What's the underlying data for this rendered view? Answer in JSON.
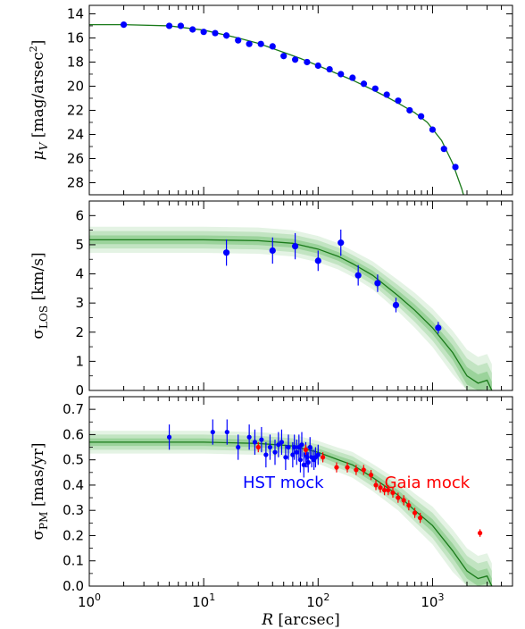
{
  "chart_data": [
    {
      "type": "scatter",
      "panel": "surface-brightness",
      "ylabel": "μ_V [mag/arsec^2]",
      "xscale": "log",
      "xlim": [
        1,
        5000
      ],
      "ylim": [
        29,
        13.3
      ],
      "y_inverted": true,
      "yticks": [
        14,
        16,
        18,
        20,
        22,
        24,
        26,
        28
      ],
      "series": [
        {
          "color": "#0000ff",
          "x": [
            2,
            5,
            6.3,
            8,
            10,
            12.6,
            15.8,
            20,
            25,
            31.6,
            40,
            50,
            63,
            80,
            100,
            126,
            158,
            200,
            251,
            316,
            398,
            501,
            631,
            794,
            1000,
            1259,
            1585
          ],
          "y": [
            14.9,
            15.0,
            15.0,
            15.3,
            15.5,
            15.6,
            15.8,
            16.2,
            16.5,
            16.5,
            16.7,
            17.5,
            17.8,
            18.0,
            18.3,
            18.6,
            19.0,
            19.3,
            19.8,
            20.2,
            20.7,
            21.2,
            22.0,
            22.5,
            23.6,
            25.2,
            26.7
          ]
        }
      ],
      "model": {
        "color": "#1a7a1a",
        "x": [
          1,
          2,
          5,
          10,
          20,
          30,
          50,
          70,
          100,
          150,
          200,
          300,
          400,
          500,
          700,
          900,
          1200,
          1500,
          1800,
          2000
        ],
        "y": [
          14.9,
          14.9,
          15.0,
          15.35,
          16.0,
          16.45,
          17.2,
          17.7,
          18.3,
          19.0,
          19.5,
          20.3,
          20.9,
          21.4,
          22.2,
          23.0,
          24.5,
          26.4,
          28.5,
          30.0
        ]
      }
    },
    {
      "type": "scatter",
      "panel": "los-dispersion",
      "ylabel": "σ_LOS [km/s]",
      "xscale": "log",
      "xlim": [
        1,
        5000
      ],
      "ylim": [
        0,
        6.5
      ],
      "yticks": [
        0,
        1,
        2,
        3,
        4,
        5,
        6
      ],
      "series": [
        {
          "color": "#0000ff",
          "x": [
            15.8,
            40,
            63,
            100,
            158,
            224,
            331,
            479,
            1122
          ],
          "y": [
            4.73,
            4.8,
            4.95,
            4.45,
            5.07,
            3.95,
            3.68,
            2.93,
            2.15
          ],
          "err": [
            0.45,
            0.45,
            0.45,
            0.35,
            0.45,
            0.35,
            0.3,
            0.25,
            0.2
          ]
        }
      ],
      "model": {
        "color": "#1a7a1a",
        "x": [
          1,
          10,
          30,
          60,
          100,
          150,
          200,
          300,
          500,
          700,
          1000,
          1500,
          2000,
          2500,
          3000,
          3300
        ],
        "y": [
          5.17,
          5.17,
          5.14,
          5.05,
          4.85,
          4.6,
          4.35,
          3.95,
          3.25,
          2.75,
          2.15,
          1.3,
          0.5,
          0.25,
          0.35,
          0.0
        ],
        "band_halfwidth": [
          0.15,
          0.15,
          0.15,
          0.15,
          0.15,
          0.15,
          0.15,
          0.16,
          0.18,
          0.2,
          0.22,
          0.25,
          0.3,
          0.3,
          0.3,
          0.3
        ]
      }
    },
    {
      "type": "scatter",
      "panel": "pm-dispersion",
      "ylabel": "σ_PM [mas/yr]",
      "xlabel": "R [arcsec]",
      "xscale": "log",
      "xlim": [
        1,
        5000
      ],
      "ylim": [
        0,
        0.75
      ],
      "yticks": [
        0.0,
        0.1,
        0.2,
        0.3,
        0.4,
        0.5,
        0.6,
        0.7
      ],
      "xticks": [
        1,
        10,
        100,
        1000
      ],
      "xtick_labels": [
        "10^0",
        "10^1",
        "10^2",
        "10^3"
      ],
      "series": [
        {
          "color": "#0000ff",
          "x": [
            5,
            12,
            16,
            20,
            25,
            28,
            32,
            35,
            38,
            42,
            45,
            48,
            52,
            55,
            60,
            62,
            65,
            68,
            70,
            72,
            75,
            78,
            80,
            82,
            85,
            88,
            92,
            95,
            100
          ],
          "y": [
            0.59,
            0.61,
            0.61,
            0.55,
            0.59,
            0.57,
            0.58,
            0.52,
            0.55,
            0.53,
            0.56,
            0.57,
            0.51,
            0.55,
            0.52,
            0.55,
            0.53,
            0.55,
            0.5,
            0.56,
            0.48,
            0.52,
            0.51,
            0.49,
            0.55,
            0.51,
            0.5,
            0.51,
            0.52
          ],
          "err": [
            0.05,
            0.05,
            0.05,
            0.05,
            0.05,
            0.05,
            0.05,
            0.05,
            0.05,
            0.05,
            0.05,
            0.05,
            0.05,
            0.05,
            0.05,
            0.05,
            0.05,
            0.05,
            0.05,
            0.05,
            0.05,
            0.05,
            0.04,
            0.04,
            0.04,
            0.04,
            0.04,
            0.04,
            0.04
          ]
        },
        {
          "color": "#ff0000",
          "x": [
            30,
            78,
            110,
            145,
            180,
            215,
            250,
            290,
            320,
            350,
            380,
            410,
            450,
            500,
            560,
            620,
            700,
            780,
            2600
          ],
          "y": [
            0.55,
            0.54,
            0.51,
            0.47,
            0.47,
            0.46,
            0.46,
            0.44,
            0.4,
            0.39,
            0.38,
            0.38,
            0.37,
            0.35,
            0.34,
            0.32,
            0.29,
            0.27,
            0.21
          ],
          "err": [
            0.02,
            0.02,
            0.02,
            0.02,
            0.02,
            0.02,
            0.02,
            0.02,
            0.02,
            0.02,
            0.02,
            0.02,
            0.02,
            0.02,
            0.02,
            0.02,
            0.02,
            0.02,
            0.015
          ]
        }
      ],
      "model": {
        "color": "#1a7a1a",
        "x": [
          1,
          10,
          30,
          60,
          100,
          150,
          200,
          300,
          500,
          700,
          1000,
          1500,
          2000,
          2500,
          3000,
          3300
        ],
        "y": [
          0.57,
          0.57,
          0.565,
          0.555,
          0.53,
          0.5,
          0.48,
          0.43,
          0.36,
          0.3,
          0.24,
          0.14,
          0.06,
          0.03,
          0.04,
          0.0
        ],
        "band_halfwidth": [
          0.015,
          0.015,
          0.015,
          0.015,
          0.015,
          0.016,
          0.017,
          0.018,
          0.02,
          0.022,
          0.025,
          0.028,
          0.03,
          0.03,
          0.03,
          0.03
        ]
      },
      "annotations": [
        {
          "text": "HST mock",
          "color": "#0000ff"
        },
        {
          "text": "Gaia mock",
          "color": "#ff0000"
        }
      ]
    }
  ]
}
